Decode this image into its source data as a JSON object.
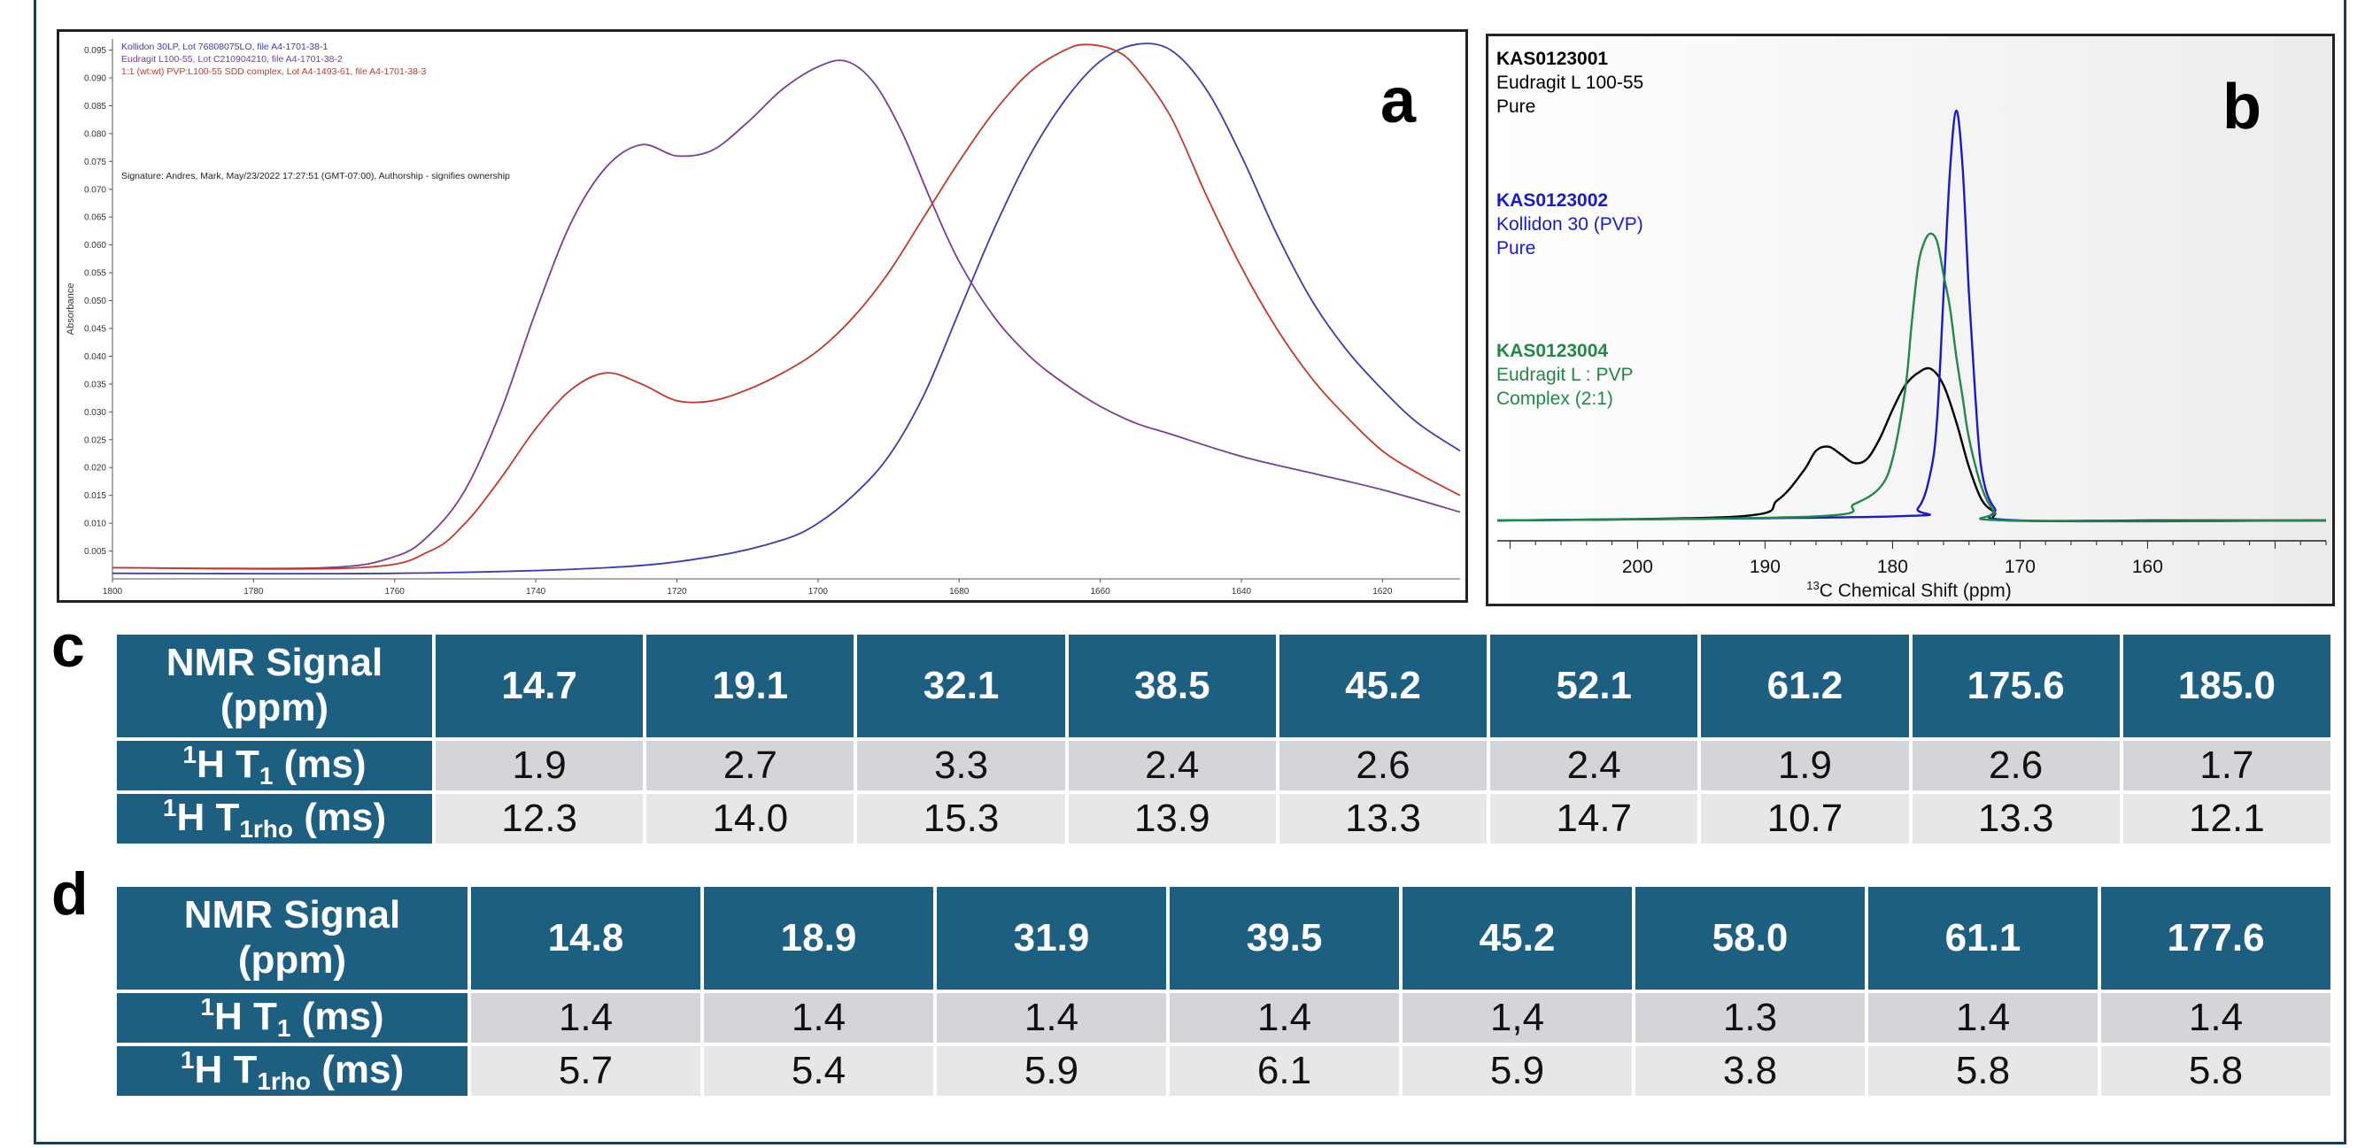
{
  "panel_a": {
    "letter": "a",
    "legend": [
      {
        "text": "Kollidon 30LP, Lot 76808075LO, file A4-1701-38-1",
        "color": "#3b3bb0"
      },
      {
        "text": "Eudragit L100-55, Lot C210904210, file A4-1701-38-2",
        "color": "#7a3d8f"
      },
      {
        "text": "1:1 (wt:wt) PVP:L100-55 SDD complex, Lot A4-1493-61, file A4-1701-38-3",
        "color": "#c0392b"
      }
    ],
    "signature": "Signature: Andres, Mark, May/23/2022 17:27:51 (GMT-07:00), Authorship - signifies ownership",
    "ylabel": "Absorbance"
  },
  "panel_b": {
    "letter": "b",
    "samples": [
      {
        "id": "KAS0123001",
        "lines": [
          "Eudragit L 100-55",
          "Pure"
        ],
        "color": "#000000"
      },
      {
        "id": "KAS0123002",
        "lines": [
          "Kollidon 30 (PVP)",
          "Pure"
        ],
        "color": "#1a1acc"
      },
      {
        "id": "KAS0123004",
        "lines": [
          "Eudragit L : PVP",
          "Complex (2:1)"
        ],
        "color": "#1e8a45"
      }
    ],
    "xlabel_sup": "13",
    "xlabel": "C Chemical Shift (ppm)"
  },
  "chart_data": [
    {
      "type": "line",
      "ylabel": "Absorbance",
      "xlim": [
        1800,
        1609
      ],
      "ylim": [
        0.0,
        0.097
      ],
      "x_ticks": [
        1800,
        1780,
        1760,
        1740,
        1720,
        1700,
        1680,
        1660,
        1640,
        1620
      ],
      "y_ticks": [
        0.005,
        0.01,
        0.015,
        0.02,
        0.025,
        0.03,
        0.035,
        0.04,
        0.045,
        0.05,
        0.055,
        0.06,
        0.065,
        0.07,
        0.075,
        0.08,
        0.085,
        0.09,
        0.095
      ],
      "series": [
        {
          "name": "Kollidon 30LP, Lot 76808075LO, file A4-1701-38-1",
          "color": "#3b3bb0",
          "x": [
            1800,
            1760,
            1730,
            1715,
            1705,
            1700,
            1695,
            1690,
            1685,
            1680,
            1675,
            1670,
            1665,
            1660,
            1655,
            1650,
            1645,
            1640,
            1635,
            1630,
            1625,
            1620,
            1615,
            1609
          ],
          "y": [
            0.001,
            0.001,
            0.002,
            0.004,
            0.007,
            0.01,
            0.015,
            0.022,
            0.033,
            0.048,
            0.063,
            0.076,
            0.086,
            0.093,
            0.096,
            0.095,
            0.088,
            0.076,
            0.062,
            0.05,
            0.041,
            0.034,
            0.028,
            0.023
          ]
        },
        {
          "name": "Eudragit L100-55, Lot C210904210, file A4-1701-38-2",
          "color": "#7a3d8f",
          "x": [
            1800,
            1770,
            1760,
            1755,
            1750,
            1745,
            1740,
            1735,
            1730,
            1725,
            1720,
            1715,
            1710,
            1705,
            1700,
            1696,
            1692,
            1688,
            1684,
            1680,
            1675,
            1670,
            1665,
            1660,
            1655,
            1650,
            1640,
            1630,
            1620,
            1609
          ],
          "y": [
            0.002,
            0.002,
            0.004,
            0.008,
            0.016,
            0.03,
            0.048,
            0.064,
            0.074,
            0.078,
            0.076,
            0.077,
            0.082,
            0.088,
            0.092,
            0.093,
            0.089,
            0.08,
            0.068,
            0.057,
            0.047,
            0.04,
            0.035,
            0.031,
            0.028,
            0.026,
            0.022,
            0.019,
            0.016,
            0.012
          ]
        },
        {
          "name": "1:1 (wt:wt) PVP:L100-55 SDD complex, Lot A4-1493-61, file A4-1701-38-3",
          "color": "#c0392b",
          "x": [
            1800,
            1765,
            1755,
            1750,
            1745,
            1740,
            1735,
            1730,
            1725,
            1720,
            1715,
            1710,
            1705,
            1700,
            1695,
            1690,
            1685,
            1680,
            1675,
            1670,
            1665,
            1662,
            1658,
            1655,
            1650,
            1645,
            1640,
            1635,
            1630,
            1625,
            1620,
            1615,
            1609
          ],
          "y": [
            0.002,
            0.002,
            0.005,
            0.01,
            0.018,
            0.027,
            0.034,
            0.037,
            0.035,
            0.032,
            0.032,
            0.034,
            0.037,
            0.041,
            0.047,
            0.055,
            0.065,
            0.075,
            0.084,
            0.091,
            0.095,
            0.096,
            0.095,
            0.092,
            0.083,
            0.069,
            0.056,
            0.045,
            0.036,
            0.029,
            0.023,
            0.019,
            0.015
          ]
        }
      ]
    },
    {
      "type": "line",
      "xlabel": "13C Chemical Shift (ppm)",
      "xlim": [
        211,
        146
      ],
      "x_ticks": [
        200,
        190,
        180,
        170,
        160
      ],
      "series": [
        {
          "name": "KAS0123001",
          "color": "#000000",
          "x": [
            211,
            192,
            189,
            187,
            186,
            185,
            184,
            183,
            182,
            181,
            180,
            179,
            178,
            177,
            176,
            175,
            174,
            173,
            172,
            171,
            160,
            146
          ],
          "y": [
            0.0,
            0.01,
            0.05,
            0.12,
            0.17,
            0.18,
            0.16,
            0.14,
            0.15,
            0.2,
            0.27,
            0.33,
            0.36,
            0.37,
            0.33,
            0.24,
            0.13,
            0.05,
            0.02,
            0.0,
            0.0,
            0.0
          ]
        },
        {
          "name": "KAS0123002",
          "color": "#1a1acc",
          "x": [
            211,
            180,
            178,
            177,
            176.5,
            176,
            175.5,
            175,
            174.5,
            174,
            173.5,
            173,
            172,
            170,
            146
          ],
          "y": [
            0.0,
            0.01,
            0.03,
            0.12,
            0.25,
            0.55,
            0.85,
            1.0,
            0.86,
            0.55,
            0.3,
            0.12,
            0.03,
            0.0,
            0.0
          ]
        },
        {
          "name": "KAS0123004",
          "color": "#1e8a45",
          "x": [
            211,
            186,
            183,
            181,
            180,
            179,
            178.5,
            178,
            177.5,
            177,
            176.5,
            176,
            175.5,
            175,
            174.5,
            174,
            173,
            172,
            171,
            146
          ],
          "y": [
            0.0,
            0.01,
            0.04,
            0.08,
            0.15,
            0.32,
            0.48,
            0.62,
            0.68,
            0.7,
            0.68,
            0.6,
            0.52,
            0.4,
            0.3,
            0.2,
            0.08,
            0.02,
            0.0,
            0.0
          ]
        }
      ]
    },
    {
      "type": "table",
      "header": [
        "NMR Signal (ppm)",
        "14.7",
        "19.1",
        "32.1",
        "38.5",
        "45.2",
        "52.1",
        "61.2",
        "175.6",
        "185.0"
      ],
      "rows": [
        {
          "label": "1H T1 (ms)",
          "values": [
            "1.9",
            "2.7",
            "3.3",
            "2.4",
            "2.6",
            "2.4",
            "1.9",
            "2.6",
            "1.7"
          ]
        },
        {
          "label": "1H T1rho (ms)",
          "values": [
            "12.3",
            "14.0",
            "15.3",
            "13.9",
            "13.3",
            "14.7",
            "10.7",
            "13.3",
            "12.1"
          ]
        }
      ]
    },
    {
      "type": "table",
      "header": [
        "NMR Signal (ppm)",
        "14.8",
        "18.9",
        "31.9",
        "39.5",
        "45.2",
        "58.0",
        "61.1",
        "177.6"
      ],
      "rows": [
        {
          "label": "1H T1 (ms)",
          "values": [
            "1.4",
            "1.4",
            "1.4",
            "1.4",
            "1,4",
            "1.3",
            "1.4",
            "1.4"
          ]
        },
        {
          "label": "1H T1rho (ms)",
          "values": [
            "5.7",
            "5.4",
            "5.9",
            "6.1",
            "5.9",
            "3.8",
            "5.8",
            "5.8"
          ]
        }
      ]
    }
  ],
  "table_c": {
    "letter": "c",
    "header_label_line1": "NMR Signal",
    "header_label_line2": "(ppm)",
    "header": [
      "14.7",
      "19.1",
      "32.1",
      "38.5",
      "45.2",
      "52.1",
      "61.2",
      "175.6",
      "185.0"
    ],
    "row1": {
      "sup": "1",
      "main": "H T",
      "sub": "1",
      "unit": " (ms)",
      "values": [
        "1.9",
        "2.7",
        "3.3",
        "2.4",
        "2.6",
        "2.4",
        "1.9",
        "2.6",
        "1.7"
      ]
    },
    "row2": {
      "sup": "1",
      "main": "H T",
      "sub": "1rho",
      "unit": " (ms)",
      "values": [
        "12.3",
        "14.0",
        "15.3",
        "13.9",
        "13.3",
        "14.7",
        "10.7",
        "13.3",
        "12.1"
      ]
    }
  },
  "table_d": {
    "letter": "d",
    "header_label_line1": "NMR Signal",
    "header_label_line2": "(ppm)",
    "header": [
      "14.8",
      "18.9",
      "31.9",
      "39.5",
      "45.2",
      "58.0",
      "61.1",
      "177.6"
    ],
    "row1": {
      "sup": "1",
      "main": "H T",
      "sub": "1",
      "unit": " (ms)",
      "values": [
        "1.4",
        "1.4",
        "1.4",
        "1.4",
        "1,4",
        "1.3",
        "1.4",
        "1.4"
      ]
    },
    "row2": {
      "sup": "1",
      "main": "H T",
      "sub": "1rho",
      "unit": " (ms)",
      "values": [
        "5.7",
        "5.4",
        "5.9",
        "6.1",
        "5.9",
        "3.8",
        "5.8",
        "5.8"
      ]
    }
  }
}
